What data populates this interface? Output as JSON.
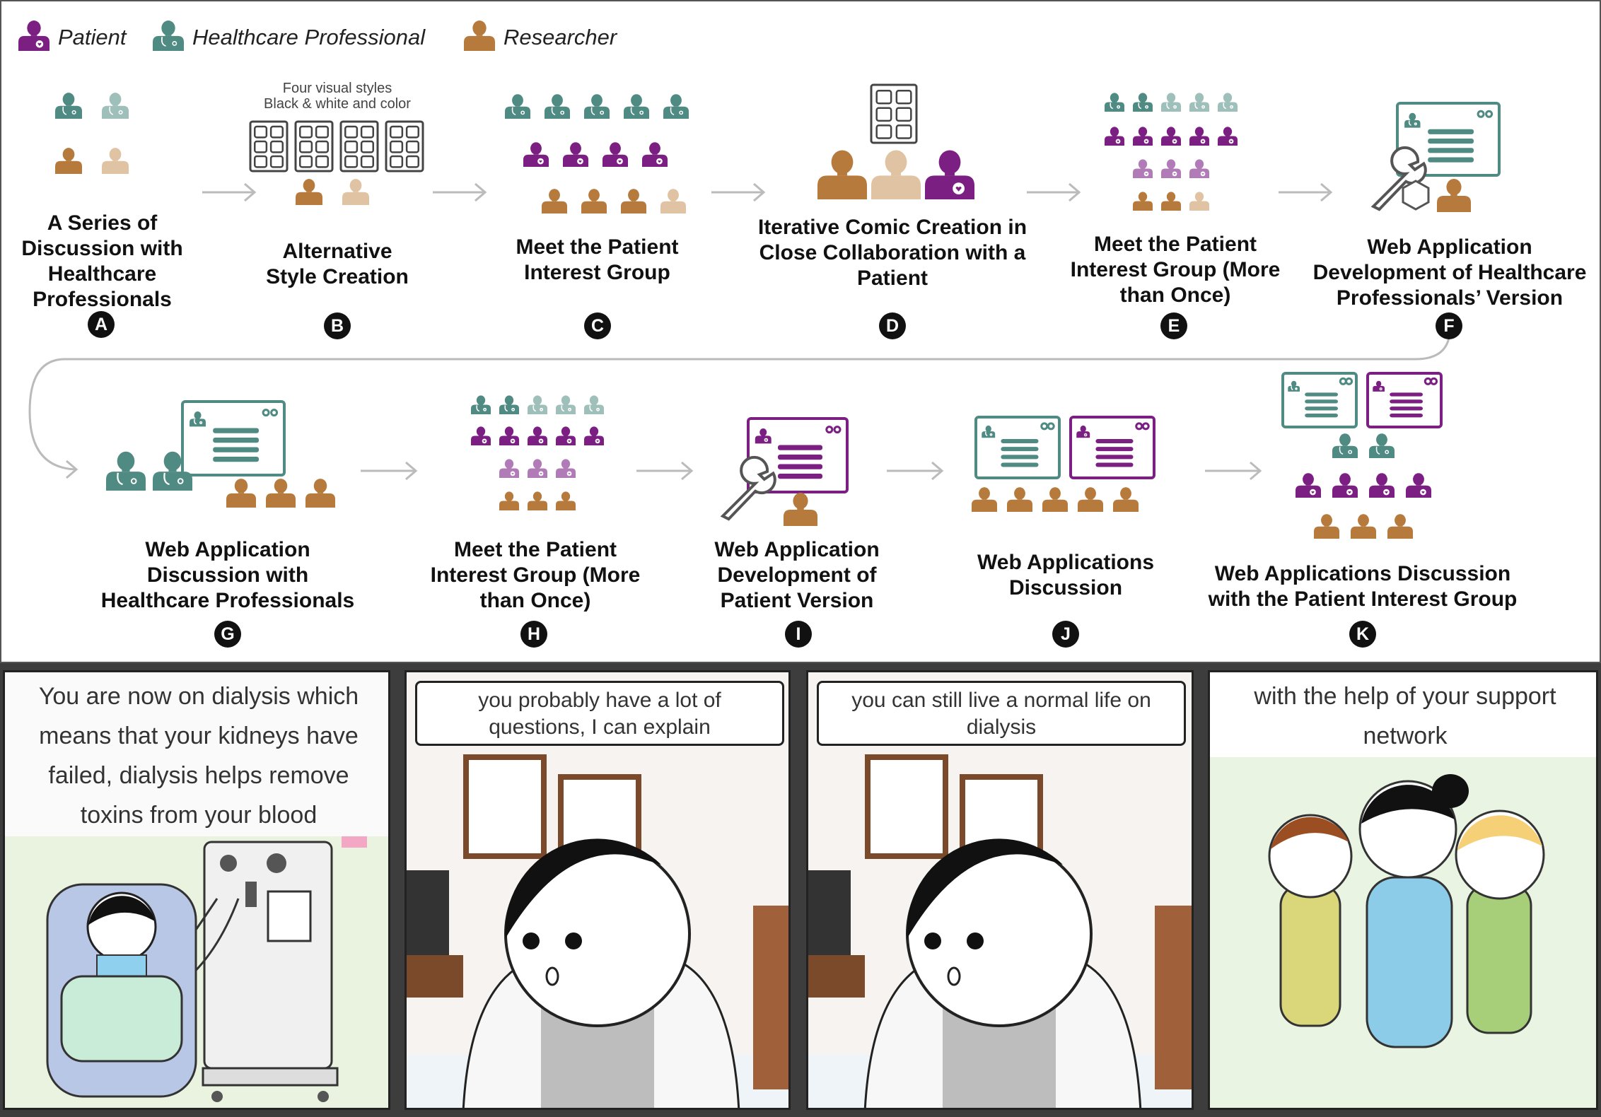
{
  "legend": {
    "patient": "Patient",
    "healthcare_professional": "Healthcare Professional",
    "researcher": "Researcher"
  },
  "colors": {
    "patient": "#7b1f83",
    "patient_light": "#b07bb7",
    "professional": "#4f8a83",
    "professional_light": "#9fbfba",
    "researcher": "#b67a3d",
    "researcher_light": "#e0c3a3"
  },
  "steps": [
    {
      "id": "A",
      "label": "A Series of\nDiscussion with\nHealthcare\nProfessionals"
    },
    {
      "id": "B",
      "label": "Alternative\nStyle Creation",
      "note": "Four visual styles\nBlack & white and color"
    },
    {
      "id": "C",
      "label": "Meet the Patient\nInterest Group"
    },
    {
      "id": "D",
      "label": "Iterative Comic Creation in\nClose Collaboration with a\nPatient"
    },
    {
      "id": "E",
      "label": "Meet the Patient\nInterest Group (More\nthan Once)"
    },
    {
      "id": "F",
      "label": "Web Application\nDevelopment of Healthcare\nProfessionals’ Version"
    },
    {
      "id": "G",
      "label": "Web Application\nDiscussion with\nHealthcare Professionals"
    },
    {
      "id": "H",
      "label": "Meet the Patient\nInterest Group (More\nthan Once)"
    },
    {
      "id": "I",
      "label": "Web Application\nDevelopment of\nPatient Version"
    },
    {
      "id": "J",
      "label": "Web Applications\nDiscussion"
    },
    {
      "id": "K",
      "label": "Web Applications Discussion\nwith the Patient Interest Group"
    }
  ],
  "comic": {
    "panel1": "You are now on dialysis which\nmeans that your kidneys have\nfailed, dialysis helps remove\ntoxins from your blood",
    "panel2": "you probably have a lot of\nquestions, I can explain",
    "panel3": "you can still live a normal life on\ndialysis",
    "panel4": "with the help of your support\nnetwork"
  }
}
